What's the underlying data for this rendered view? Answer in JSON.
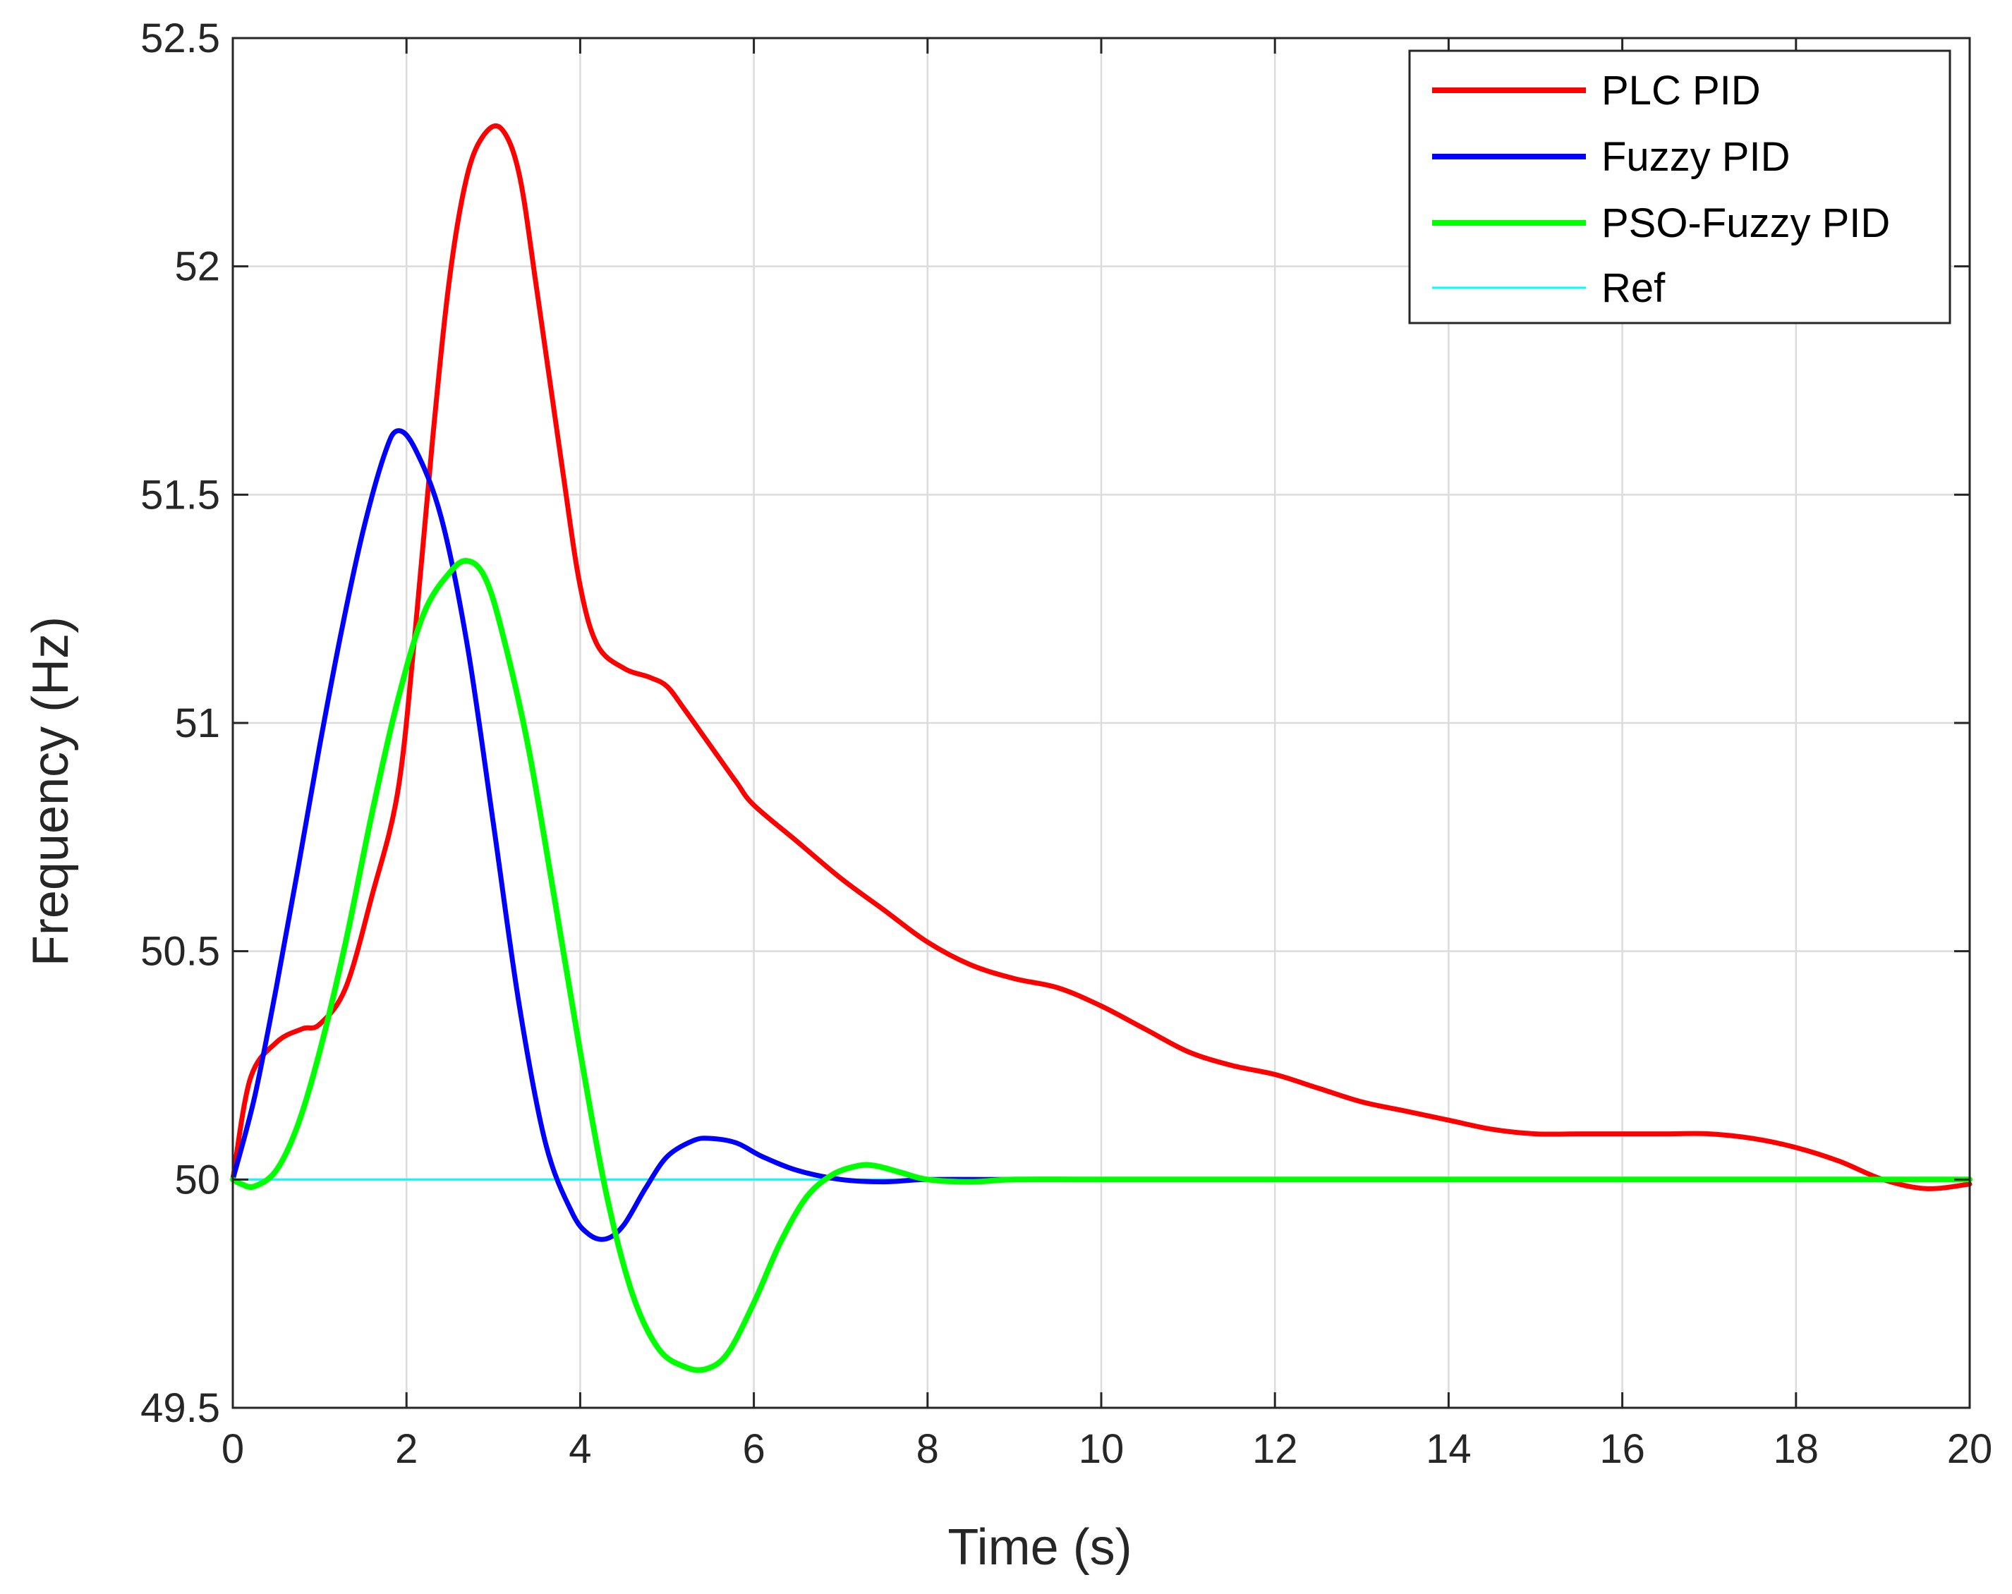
{
  "chart_data": {
    "type": "line",
    "title": "",
    "xlabel": "Time (s)",
    "ylabel": "Frequency (Hz)",
    "xlim": [
      0,
      20
    ],
    "ylim": [
      49.5,
      52.5
    ],
    "xticks": [
      0,
      2,
      4,
      6,
      8,
      10,
      12,
      14,
      16,
      18,
      20
    ],
    "xtick_labels": [
      "0",
      "2",
      "4",
      "6",
      "8",
      "10",
      "12",
      "14",
      "16",
      "18",
      "20"
    ],
    "yticks": [
      49.5,
      50,
      50.5,
      51,
      51.5,
      52,
      52.5
    ],
    "ytick_labels": [
      "49.5",
      "50",
      "50.5",
      "51",
      "51.5",
      "52",
      "52.5"
    ],
    "grid": true,
    "legend_position": "top-right",
    "series": [
      {
        "name": "PLC PID",
        "color": "#ff0000",
        "x": [
          0,
          0.2,
          0.5,
          0.8,
          1.0,
          1.3,
          1.6,
          1.9,
          2.1,
          2.3,
          2.5,
          2.7,
          2.9,
          3.1,
          3.3,
          3.5,
          3.8,
          4.0,
          4.2,
          4.5,
          4.8,
          5.0,
          5.2,
          5.5,
          5.8,
          6.0,
          6.5,
          7.0,
          7.5,
          8.0,
          8.5,
          9.0,
          9.5,
          10.0,
          10.5,
          11.0,
          11.5,
          12.0,
          12.5,
          13.0,
          13.5,
          14.0,
          14.5,
          15.0,
          15.5,
          16.0,
          16.5,
          17.0,
          17.5,
          18.0,
          18.5,
          19.0,
          19.5,
          20.0
        ],
        "y": [
          50.0,
          50.22,
          50.3,
          50.33,
          50.34,
          50.42,
          50.62,
          50.85,
          51.2,
          51.62,
          51.98,
          52.2,
          52.29,
          52.3,
          52.2,
          51.95,
          51.55,
          51.3,
          51.17,
          51.12,
          51.1,
          51.08,
          51.03,
          50.95,
          50.87,
          50.82,
          50.74,
          50.66,
          50.59,
          50.52,
          50.47,
          50.44,
          50.42,
          50.38,
          50.33,
          50.28,
          50.25,
          50.23,
          50.2,
          50.17,
          50.15,
          50.13,
          50.11,
          50.1,
          50.1,
          50.1,
          50.1,
          50.1,
          50.09,
          50.07,
          50.04,
          50.0,
          49.98,
          49.99
        ]
      },
      {
        "name": "Fuzzy PID",
        "color": "#0000ff",
        "x": [
          0,
          0.25,
          0.5,
          0.75,
          1.0,
          1.25,
          1.5,
          1.75,
          1.9,
          2.1,
          2.4,
          2.7,
          3.0,
          3.3,
          3.6,
          3.9,
          4.1,
          4.3,
          4.5,
          4.75,
          5.0,
          5.3,
          5.5,
          5.8,
          6.1,
          6.5,
          7.0,
          7.5,
          8.0,
          9.0,
          10.0,
          12.0,
          14.0,
          16.0,
          18.0,
          20.0
        ],
        "y": [
          50.0,
          50.18,
          50.42,
          50.68,
          50.95,
          51.2,
          51.42,
          51.59,
          51.64,
          51.6,
          51.45,
          51.17,
          50.78,
          50.38,
          50.08,
          49.93,
          49.88,
          49.87,
          49.9,
          49.98,
          50.05,
          50.085,
          50.09,
          50.08,
          50.05,
          50.02,
          50.0,
          49.995,
          50.0,
          50.0,
          50.0,
          50.0,
          50.0,
          50.0,
          50.0,
          50.0
        ]
      },
      {
        "name": "PSO-Fuzzy PID",
        "color": "#00ff00",
        "x": [
          0,
          0.1,
          0.25,
          0.5,
          0.75,
          1.0,
          1.3,
          1.6,
          1.9,
          2.2,
          2.5,
          2.7,
          2.9,
          3.1,
          3.4,
          3.7,
          4.0,
          4.3,
          4.6,
          4.9,
          5.2,
          5.45,
          5.7,
          6.0,
          6.3,
          6.6,
          6.9,
          7.2,
          7.4,
          7.7,
          8.0,
          8.5,
          9.0,
          10.0,
          12.0,
          14.0,
          16.0,
          18.0,
          20.0
        ],
        "y": [
          50.0,
          49.99,
          49.985,
          50.02,
          50.12,
          50.28,
          50.52,
          50.8,
          51.05,
          51.24,
          51.33,
          51.355,
          51.32,
          51.2,
          50.95,
          50.62,
          50.28,
          49.97,
          49.75,
          49.63,
          49.59,
          49.585,
          49.62,
          49.73,
          49.86,
          49.96,
          50.01,
          50.03,
          50.03,
          50.015,
          50.0,
          49.995,
          50.0,
          50.0,
          50.0,
          50.0,
          50.0,
          50.0,
          50.0
        ]
      },
      {
        "name": "Ref",
        "color": "#00ffff",
        "x": [
          0,
          20
        ],
        "y": [
          50.0,
          50.0
        ]
      }
    ]
  }
}
